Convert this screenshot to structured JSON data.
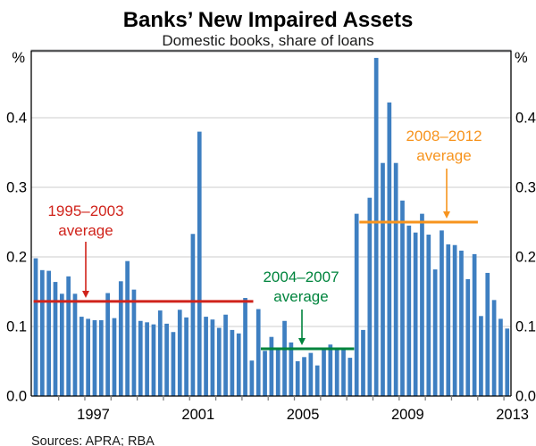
{
  "title": "Banks’ New Impaired Assets",
  "subtitle": "Domestic books, share of loans",
  "source": "Sources: APRA; RBA",
  "y_axis": {
    "unit_left": "%",
    "unit_right": "%",
    "tick_labels": [
      "0.0",
      "0.1",
      "0.2",
      "0.3",
      "0.4"
    ],
    "range": [
      0,
      0.5
    ],
    "sides": "both"
  },
  "x_axis": {
    "year_labels": [
      "1997",
      "2001",
      "2005",
      "2009",
      "2013"
    ],
    "first_year": 1995,
    "tick_every_years": 1
  },
  "chart_data": {
    "type": "bar",
    "title": "Banks’ New Impaired Assets",
    "xlabel": "",
    "ylabel": "Share of loans (%)",
    "frequency": "quarterly",
    "start_period": "1995Q1",
    "end_period": "2013Q1",
    "ylim": [
      0,
      0.5
    ],
    "grid": true,
    "bar_color": "#3E7FC1",
    "values": [
      0.198,
      0.181,
      0.18,
      0.164,
      0.147,
      0.172,
      0.147,
      0.114,
      0.111,
      0.109,
      0.109,
      0.148,
      0.112,
      0.165,
      0.194,
      0.153,
      0.108,
      0.106,
      0.103,
      0.123,
      0.104,
      0.092,
      0.124,
      0.113,
      0.233,
      0.38,
      0.114,
      0.11,
      0.098,
      0.117,
      0.095,
      0.09,
      0.141,
      0.051,
      0.125,
      0.065,
      0.085,
      0.068,
      0.108,
      0.077,
      0.05,
      0.056,
      0.062,
      0.044,
      0.068,
      0.074,
      0.068,
      0.068,
      0.055,
      0.262,
      0.095,
      0.285,
      0.486,
      0.335,
      0.422,
      0.335,
      0.281,
      0.245,
      0.235,
      0.262,
      0.232,
      0.182,
      0.238,
      0.218,
      0.217,
      0.209,
      0.168,
      0.204,
      0.115,
      0.177,
      0.138,
      0.111,
      0.097
    ],
    "average_lines": [
      {
        "label_lines": [
          "1995–2003",
          "average"
        ],
        "period": "1995–2003",
        "value": 0.136,
        "color": "#D0231B",
        "start_bar": 1.0,
        "end_bar": 33.9
      },
      {
        "label_lines": [
          "2004–2007",
          "average"
        ],
        "period": "2004–2007",
        "value": 0.068,
        "color": "#00843D",
        "start_bar": 35.7,
        "end_bar": 49.3
      },
      {
        "label_lines": [
          "2008–2012",
          "average"
        ],
        "period": "2008–2012",
        "value": 0.25,
        "color": "#F7941E",
        "start_bar": 50.75,
        "end_bar": 68.2
      }
    ],
    "colors": {
      "gridline": "#CCCCCC",
      "frame_top": "#58595B",
      "axis": "#000000",
      "tick": "#808080"
    }
  }
}
